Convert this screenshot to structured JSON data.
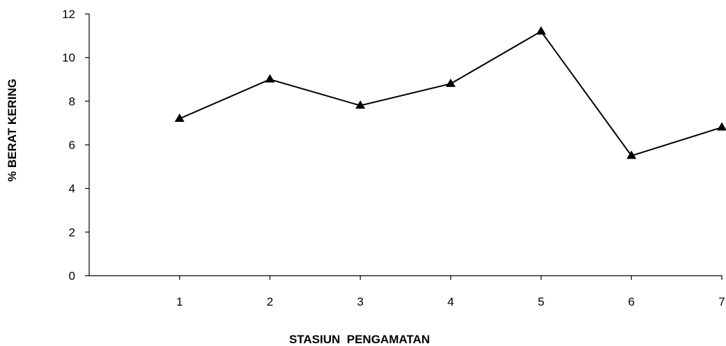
{
  "chart_data": {
    "type": "line",
    "title": "",
    "xlabel": "STASIUN  PENGAMATAN",
    "ylabel": "% BERAT KERING",
    "x": [
      1,
      2,
      3,
      4,
      5,
      6,
      7
    ],
    "x_tick_labels": [
      "1",
      "2",
      "3",
      "4",
      "5",
      "6",
      "7"
    ],
    "y_tick_labels": [
      "0",
      "2",
      "4",
      "6",
      "8",
      "10",
      "12"
    ],
    "ylim": [
      0,
      12
    ],
    "xlim": [
      0,
      7
    ],
    "grid": false,
    "legend": "none",
    "marker": "triangle",
    "line_color": "#000000",
    "series": [
      {
        "values": [
          7.2,
          9.0,
          7.8,
          8.8,
          11.2,
          5.5,
          6.8
        ]
      }
    ]
  }
}
